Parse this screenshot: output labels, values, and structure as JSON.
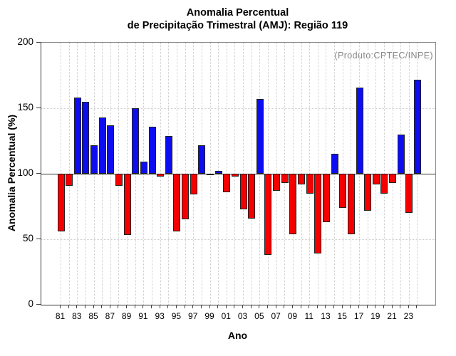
{
  "header": {
    "title_line1": "Anomalia Percentual",
    "title_line2": "de Precipitação Trimestral (AMJ): Região 119"
  },
  "chart_data": {
    "type": "bar",
    "title": "Anomalia Percentual de Precipitação Trimestral (AMJ): Região 119",
    "xlabel": "Ano",
    "ylabel": "Anomalia Percentual (%)",
    "annotation": "(Produto:CPTEC/INPE)",
    "ylim": [
      0,
      200
    ],
    "yticks": [
      0,
      50,
      100,
      150,
      200
    ],
    "baseline": 100,
    "grid": true,
    "categories": [
      "81",
      "82",
      "83",
      "84",
      "85",
      "86",
      "87",
      "88",
      "89",
      "90",
      "91",
      "92",
      "93",
      "94",
      "95",
      "96",
      "97",
      "98",
      "99",
      "00",
      "01",
      "02",
      "03",
      "04",
      "05",
      "06",
      "07",
      "08",
      "09",
      "10",
      "11",
      "12",
      "13",
      "14",
      "15",
      "16",
      "17",
      "18",
      "19",
      "20",
      "21",
      "22",
      "23",
      "24"
    ],
    "values": [
      56,
      91,
      158,
      155,
      122,
      143,
      137,
      91,
      53,
      150,
      109,
      136,
      98,
      129,
      56,
      65,
      84,
      122,
      99,
      102,
      86,
      98,
      73,
      66,
      157,
      38,
      87,
      93,
      54,
      92,
      85,
      39,
      63,
      115,
      74,
      54,
      166,
      72,
      92,
      85,
      93,
      130,
      70,
      172
    ],
    "x_tick_labels_shown": [
      "81",
      "83",
      "85",
      "87",
      "89",
      "91",
      "93",
      "95",
      "97",
      "99",
      "01",
      "03",
      "05",
      "07",
      "09",
      "11",
      "13",
      "15",
      "17",
      "19",
      "21",
      "23"
    ],
    "positive_color": "#0d0df0",
    "negative_color": "#f40000",
    "bar_border_color": "#222222",
    "annotation_color": "#878787"
  }
}
